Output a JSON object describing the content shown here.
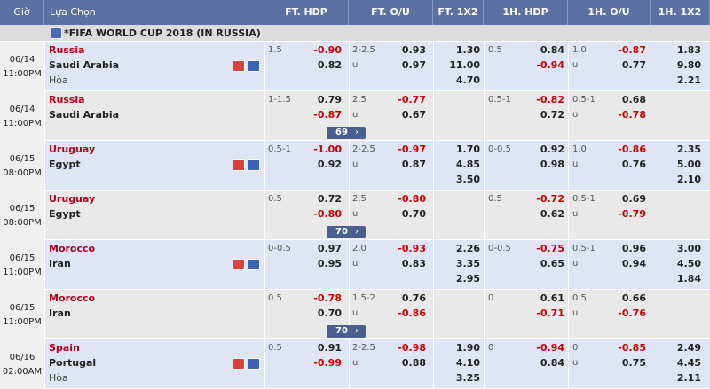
{
  "header": {
    "columns": [
      "Giờ",
      "Lựa Chọn",
      "FT. HDP",
      "FT. O/U",
      "FT. 1X2",
      "1H. HDP",
      "1H. O/U",
      "1H. 1X2"
    ]
  },
  "league": "*FIFA WORLD CUP 2018 (IN RUSSIA)",
  "matches": [
    {
      "date": "06/14",
      "time": "11:00PM",
      "home": "Russia",
      "away": "Saudi Arabia",
      "draw": "Hòa",
      "ft_hdp": {
        "line": "1.5",
        "home": "-0.90",
        "away": "0.82"
      },
      "ft_ou": {
        "line": "2-2.5",
        "over": "0.93",
        "under_label": "u",
        "under": "0.97"
      },
      "ft_1x2": [
        "1.30",
        "11.00",
        "4.70"
      ],
      "h1_hdp": {
        "line": "0.5",
        "home": "0.84",
        "away": "-0.94"
      },
      "h1_ou": {
        "line": "1.0",
        "over": "-0.87",
        "under_label": "u",
        "under": "0.77"
      },
      "h1_1x2": [
        "1.83",
        "9.80",
        "2.21"
      ]
    },
    {
      "date": "06/14",
      "time": "11:00PM",
      "home": "Russia",
      "away": "Saudi Arabia",
      "ft_hdp": {
        "line": "1-1.5",
        "home": "0.79",
        "away": "-0.87"
      },
      "ft_ou": {
        "line": "2.5",
        "over": "-0.77",
        "under_label": "u",
        "under": "0.67"
      },
      "more": "69",
      "h1_hdp": {
        "line": "0.5-1",
        "home": "-0.82",
        "away": "0.72"
      },
      "h1_ou": {
        "line": "0.5-1",
        "over": "0.68",
        "under_label": "u",
        "under": "-0.78"
      }
    },
    {
      "date": "06/15",
      "time": "08:00PM",
      "home": "Uruguay",
      "away": "Egypt",
      "ft_hdp": {
        "line": "0.5-1",
        "home": "-1.00",
        "away": "0.92"
      },
      "ft_ou": {
        "line": "2-2.5",
        "over": "-0.97",
        "under_label": "u",
        "under": "0.87"
      },
      "ft_1x2": [
        "1.70",
        "4.85",
        "3.50"
      ],
      "h1_hdp": {
        "line": "0-0.5",
        "home": "0.92",
        "away": "0.98"
      },
      "h1_ou": {
        "line": "1.0",
        "over": "-0.86",
        "under_label": "u",
        "under": "0.76"
      },
      "h1_1x2": [
        "2.35",
        "5.00",
        "2.10"
      ]
    },
    {
      "date": "06/15",
      "time": "08:00PM",
      "home": "Uruguay",
      "away": "Egypt",
      "ft_hdp": {
        "line": "0.5",
        "home": "0.72",
        "away": "-0.80"
      },
      "ft_ou": {
        "line": "2.5",
        "over": "-0.80",
        "under_label": "u",
        "under": "0.70"
      },
      "more": "70",
      "h1_hdp": {
        "line": "0.5",
        "home": "-0.72",
        "away": "0.62"
      },
      "h1_ou": {
        "line": "0.5-1",
        "over": "0.69",
        "under_label": "u",
        "under": "-0.79"
      }
    },
    {
      "date": "06/15",
      "time": "11:00PM",
      "home": "Morocco",
      "away": "Iran",
      "ft_hdp": {
        "line": "0-0.5",
        "home": "0.97",
        "away": "0.95"
      },
      "ft_ou": {
        "line": "2.0",
        "over": "-0.93",
        "under_label": "u",
        "under": "0.83"
      },
      "ft_1x2": [
        "2.26",
        "3.35",
        "2.95"
      ],
      "h1_hdp": {
        "line": "0-0.5",
        "home": "-0.75",
        "away": "0.65"
      },
      "h1_ou": {
        "line": "0.5-1",
        "over": "0.96",
        "under_label": "u",
        "under": "0.94"
      },
      "h1_1x2": [
        "3.00",
        "4.50",
        "1.84"
      ]
    },
    {
      "date": "06/15",
      "time": "11:00PM",
      "home": "Morocco",
      "away": "Iran",
      "ft_hdp": {
        "line": "0.5",
        "home": "-0.78",
        "away": "0.70"
      },
      "ft_ou": {
        "line": "1.5-2",
        "over": "0.76",
        "under_label": "u",
        "under": "-0.86"
      },
      "more": "70",
      "h1_hdp": {
        "line": "0",
        "home": "0.61",
        "away": "-0.71"
      },
      "h1_ou": {
        "line": "0.5",
        "over": "0.66",
        "under_label": "u",
        "under": "-0.76"
      }
    },
    {
      "date": "06/16",
      "time": "02:00AM",
      "home": "Spain",
      "away": "Portugal",
      "draw": "Hòa",
      "ft_hdp": {
        "line": "0.5",
        "home": "0.91",
        "away": "-0.99"
      },
      "ft_ou": {
        "line": "2-2.5",
        "over": "-0.98",
        "under_label": "u",
        "under": "0.88"
      },
      "ft_1x2": [
        "1.90",
        "4.10",
        "3.25"
      ],
      "h1_hdp": {
        "line": "0",
        "home": "-0.94",
        "away": "0.84"
      },
      "h1_ou": {
        "line": "0",
        "over": "-0.85",
        "under_label": "u",
        "under": "0.75"
      },
      "h1_1x2": [
        "2.49",
        "4.45",
        "2.11"
      ]
    }
  ]
}
